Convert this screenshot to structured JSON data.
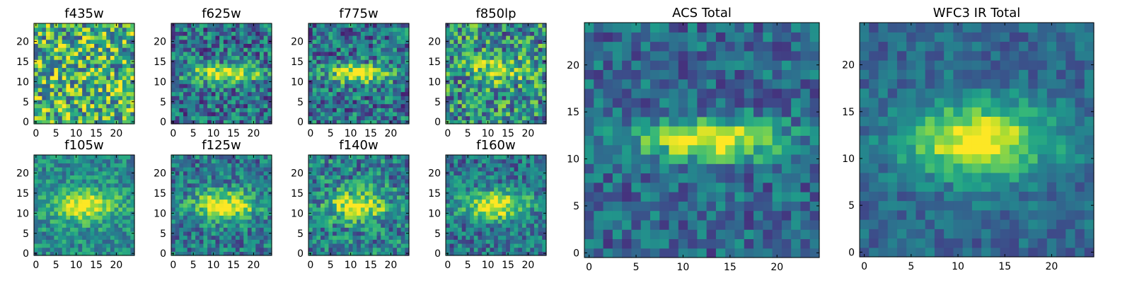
{
  "colors": {
    "colormap": [
      "#440154",
      "#482878",
      "#3e4989",
      "#31688e",
      "#26828e",
      "#1f9e89",
      "#35b779",
      "#6ece58",
      "#b5de2b",
      "#fde725"
    ],
    "axes": "#000000",
    "background": "#ffffff"
  },
  "chart_data": [
    {
      "type": "heatmap",
      "title": "f435w",
      "grid_size": 25,
      "xticks": [
        "0",
        "5",
        "10",
        "15",
        "20"
      ],
      "yticks": [
        "0",
        "5",
        "10",
        "15",
        "20"
      ],
      "xlim": [
        0,
        24
      ],
      "ylim": [
        0,
        24
      ],
      "pattern": "noise",
      "level": 0.66,
      "noise": 0.42,
      "peak": 0.0,
      "center": [
        12,
        12
      ],
      "sigma": [
        6,
        3
      ],
      "seed": 11
    },
    {
      "type": "heatmap",
      "title": "f625w",
      "grid_size": 25,
      "xticks": [
        "0",
        "5",
        "10",
        "15",
        "20"
      ],
      "yticks": [
        "0",
        "5",
        "10",
        "15",
        "20"
      ],
      "xlim": [
        0,
        24
      ],
      "ylim": [
        0,
        24
      ],
      "pattern": "elongated source",
      "level": 0.38,
      "noise": 0.3,
      "peak": 0.62,
      "center": [
        13,
        12
      ],
      "sigma": [
        6,
        1.6
      ],
      "seed": 23
    },
    {
      "type": "heatmap",
      "title": "f775w",
      "grid_size": 25,
      "xticks": [
        "0",
        "5",
        "10",
        "15",
        "20"
      ],
      "yticks": [
        "0",
        "5",
        "10",
        "15",
        "20"
      ],
      "xlim": [
        0,
        24
      ],
      "ylim": [
        0,
        24
      ],
      "pattern": "elongated source",
      "level": 0.38,
      "noise": 0.3,
      "peak": 0.64,
      "center": [
        12,
        12
      ],
      "sigma": [
        5.5,
        1.6
      ],
      "seed": 37
    },
    {
      "type": "heatmap",
      "title": "f850lp",
      "grid_size": 25,
      "xticks": [
        "0",
        "5",
        "10",
        "15",
        "20"
      ],
      "yticks": [
        "0",
        "5",
        "10",
        "15",
        "20"
      ],
      "xlim": [
        0,
        24
      ],
      "ylim": [
        0,
        24
      ],
      "pattern": "elongated source",
      "level": 0.5,
      "noise": 0.36,
      "peak": 0.42,
      "center": [
        13,
        13
      ],
      "sigma": [
        4.5,
        2.0
      ],
      "seed": 41
    },
    {
      "type": "heatmap",
      "title": "f105w",
      "grid_size": 25,
      "xticks": [
        "0",
        "5",
        "10",
        "15",
        "20"
      ],
      "yticks": [
        "0",
        "5",
        "10",
        "15",
        "20"
      ],
      "xlim": [
        0,
        24
      ],
      "ylim": [
        0,
        24
      ],
      "pattern": "extended source",
      "level": 0.48,
      "noise": 0.2,
      "peak": 0.52,
      "center": [
        12,
        12
      ],
      "sigma": [
        5.5,
        2.8
      ],
      "seed": 53
    },
    {
      "type": "heatmap",
      "title": "f125w",
      "grid_size": 25,
      "xticks": [
        "0",
        "5",
        "10",
        "15",
        "20"
      ],
      "yticks": [
        "0",
        "5",
        "10",
        "15",
        "20"
      ],
      "xlim": [
        0,
        24
      ],
      "ylim": [
        0,
        24
      ],
      "pattern": "extended source",
      "level": 0.4,
      "noise": 0.24,
      "peak": 0.6,
      "center": [
        13,
        12
      ],
      "sigma": [
        5.5,
        2.6
      ],
      "seed": 67
    },
    {
      "type": "heatmap",
      "title": "f140w",
      "grid_size": 25,
      "xticks": [
        "0",
        "5",
        "10",
        "15",
        "20"
      ],
      "yticks": [
        "0",
        "5",
        "10",
        "15",
        "20"
      ],
      "xlim": [
        0,
        24
      ],
      "ylim": [
        0,
        24
      ],
      "pattern": "extended source",
      "level": 0.44,
      "noise": 0.28,
      "peak": 0.5,
      "center": [
        12,
        12
      ],
      "sigma": [
        5.0,
        2.6
      ],
      "seed": 71
    },
    {
      "type": "heatmap",
      "title": "f160w",
      "grid_size": 25,
      "xticks": [
        "0",
        "5",
        "10",
        "15",
        "20"
      ],
      "yticks": [
        "0",
        "5",
        "10",
        "15",
        "20"
      ],
      "xlim": [
        0,
        24
      ],
      "ylim": [
        0,
        24
      ],
      "pattern": "extended source",
      "level": 0.38,
      "noise": 0.24,
      "peak": 0.62,
      "center": [
        12,
        12
      ],
      "sigma": [
        5.5,
        2.6
      ],
      "seed": 83
    },
    {
      "type": "heatmap",
      "title": "ACS Total",
      "grid_size": 25,
      "xticks": [
        "0",
        "5",
        "10",
        "15",
        "20"
      ],
      "yticks": [
        "0",
        "5",
        "10",
        "15",
        "20"
      ],
      "xlim": [
        0,
        24
      ],
      "ylim": [
        0,
        24
      ],
      "pattern": "elongated source",
      "level": 0.34,
      "noise": 0.2,
      "peak": 0.66,
      "center": [
        13,
        12
      ],
      "sigma": [
        5.5,
        1.5
      ],
      "seed": 97
    },
    {
      "type": "heatmap",
      "title": "WFC3 IR Total",
      "grid_size": 25,
      "xticks": [
        "0",
        "5",
        "10",
        "15",
        "20"
      ],
      "yticks": [
        "0",
        "5",
        "10",
        "15",
        "20"
      ],
      "xlim": [
        0,
        24
      ],
      "ylim": [
        0,
        24
      ],
      "pattern": "extended source",
      "level": 0.34,
      "noise": 0.14,
      "peak": 0.66,
      "center": [
        12,
        12
      ],
      "sigma": [
        5.5,
        2.8
      ],
      "seed": 101
    }
  ]
}
